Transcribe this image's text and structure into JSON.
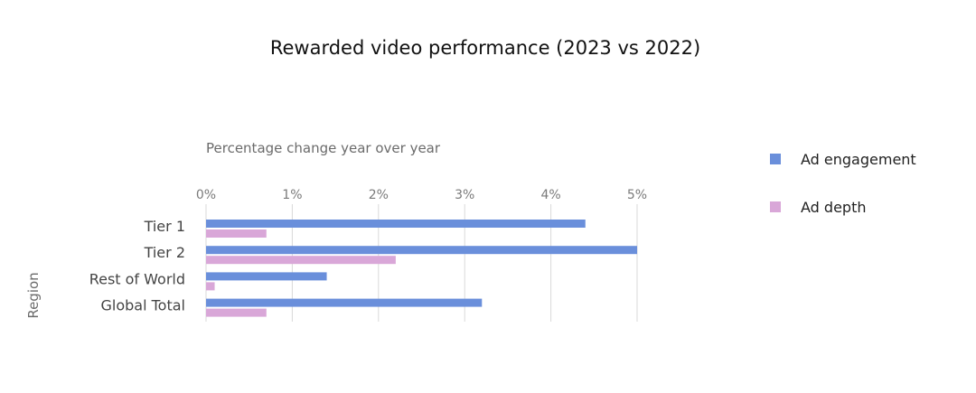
{
  "chart_data": {
    "type": "bar",
    "orientation": "horizontal",
    "title": "Rewarded video performance (2023 vs 2022)",
    "xlabel": "Percentage change year over year",
    "ylabel": "Region",
    "categories": [
      "Tier 1",
      "Tier 2",
      "Rest of World",
      "Global Total"
    ],
    "series": [
      {
        "name": "Ad engagement",
        "color": "#6a8fdb",
        "values": [
          4.4,
          5.0,
          1.4,
          3.2
        ]
      },
      {
        "name": "Ad depth",
        "color": "#d9a7d8",
        "values": [
          0.7,
          2.2,
          0.1,
          0.7
        ]
      }
    ],
    "xlim": [
      0,
      5
    ],
    "xticks": [
      0,
      1,
      2,
      3,
      4,
      5
    ],
    "xtick_labels": [
      "0%",
      "1%",
      "2%",
      "3%",
      "4%",
      "5%"
    ],
    "grid": true,
    "legend_position": "right"
  }
}
